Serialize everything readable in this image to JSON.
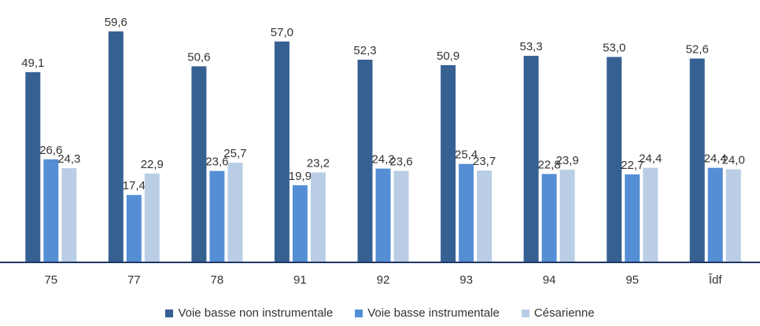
{
  "chart_data": {
    "type": "bar",
    "categories": [
      "75",
      "77",
      "78",
      "91",
      "92",
      "93",
      "94",
      "95",
      "Îdf"
    ],
    "series": [
      {
        "name": "Voie basse non instrumentale",
        "color": "#376092",
        "values": [
          49.1,
          59.6,
          50.6,
          57.0,
          52.3,
          50.9,
          53.3,
          53.0,
          52.6
        ],
        "labels": [
          "49,1",
          "59,6",
          "50,6",
          "57,0",
          "52,3",
          "50,9",
          "53,3",
          "53,0",
          "52,6"
        ]
      },
      {
        "name": "Voie basse instrumentale",
        "color": "#558ED5",
        "values": [
          26.6,
          17.4,
          23.6,
          19.9,
          24.2,
          25.4,
          22.8,
          22.7,
          24.4
        ],
        "labels": [
          "26,6",
          "17,4",
          "23,6",
          "19,9",
          "24,2",
          "25,4",
          "22,8",
          "22,7",
          "24,4"
        ]
      },
      {
        "name": "Césarienne",
        "color": "#B9CDE5",
        "values": [
          24.3,
          22.9,
          25.7,
          23.2,
          23.6,
          23.7,
          23.9,
          24.4,
          24.0
        ],
        "labels": [
          "24,3",
          "22,9",
          "25,7",
          "23,2",
          "23,6",
          "23,7",
          "23,9",
          "24,4",
          "24,0"
        ]
      }
    ],
    "ylim": [
      0,
      60
    ],
    "grid": false,
    "legend_position": "bottom",
    "axis_color": "#1F3864"
  }
}
